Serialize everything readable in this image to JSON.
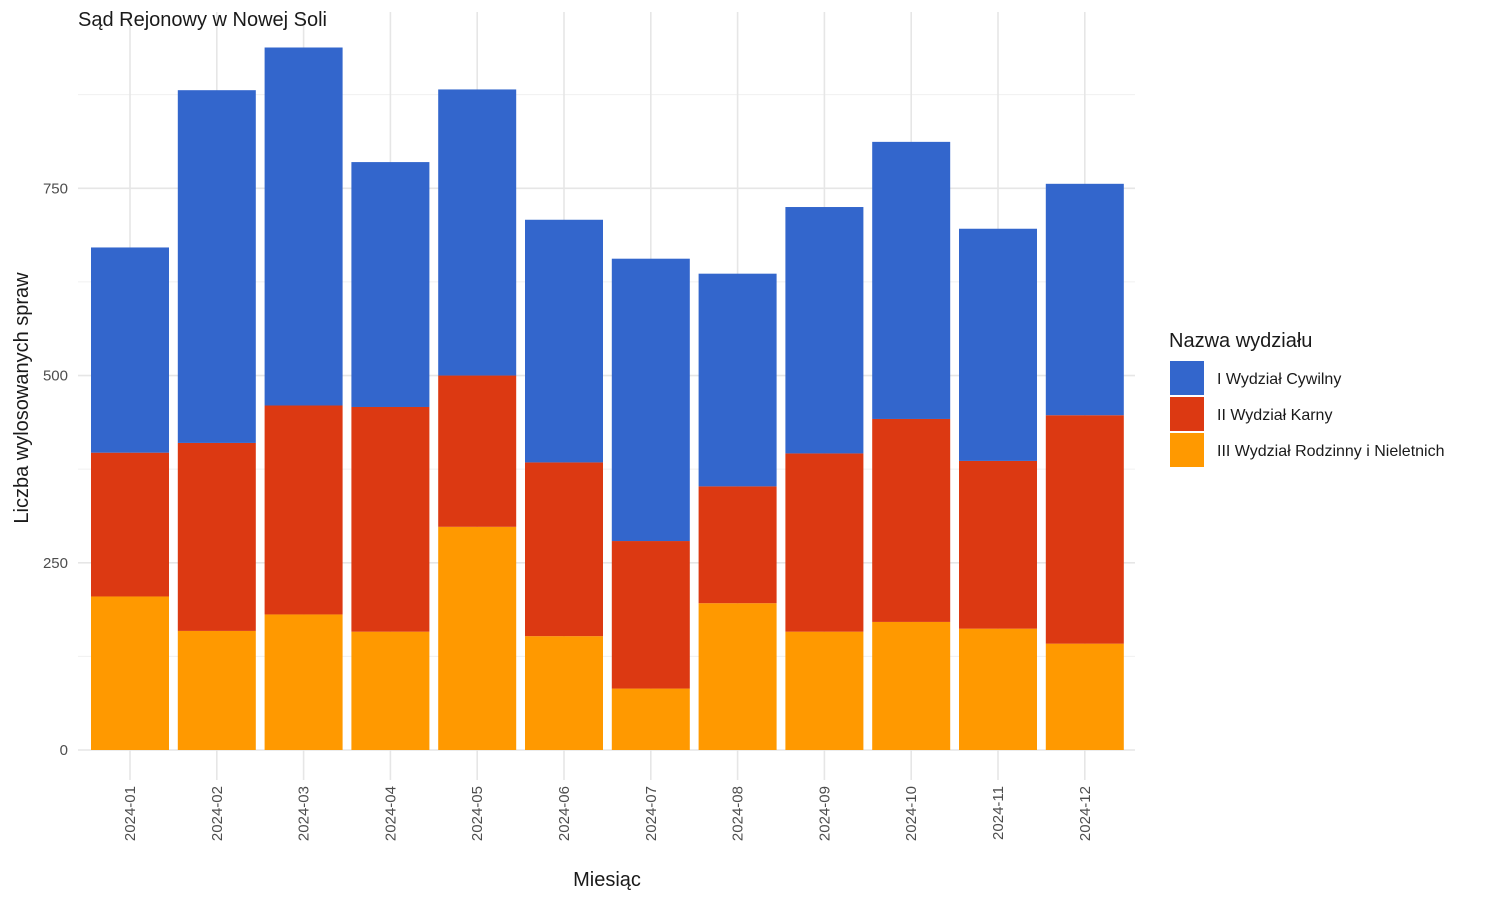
{
  "chart_data": {
    "type": "bar",
    "stacked": true,
    "title": "Sąd Rejonowy w Nowej Soli",
    "xlabel": "Miesiąc",
    "ylabel": "Liczba wylosowanych spraw",
    "categories": [
      "2024-01",
      "2024-02",
      "2024-03",
      "2024-04",
      "2024-05",
      "2024-06",
      "2024-07",
      "2024-08",
      "2024-09",
      "2024-10",
      "2024-11",
      "2024-12"
    ],
    "series": [
      {
        "name": "III Wydział Rodzinny i Nieletnich",
        "color": "#FF9900",
        "values": [
          205,
          159,
          181,
          158,
          298,
          152,
          82,
          196,
          158,
          171,
          162,
          142
        ]
      },
      {
        "name": "II Wydział Karny",
        "color": "#DC3912",
        "values": [
          192,
          251,
          279,
          300,
          202,
          232,
          197,
          156,
          238,
          271,
          224,
          305
        ]
      },
      {
        "name": "I Wydział Cywilny",
        "color": "#3366CC",
        "values": [
          274,
          471,
          478,
          327,
          382,
          324,
          377,
          284,
          329,
          370,
          310,
          309
        ]
      }
    ],
    "legend_order": [
      "I Wydział Cywilny",
      "II Wydział Karny",
      "III Wydział Rodzinny i Nieletnich"
    ],
    "legend_title": "Nazwa wydziału",
    "legend_position": "right",
    "ylim": [
      0,
      985
    ],
    "yticks": [
      0,
      250,
      500,
      750
    ],
    "grid": true
  }
}
